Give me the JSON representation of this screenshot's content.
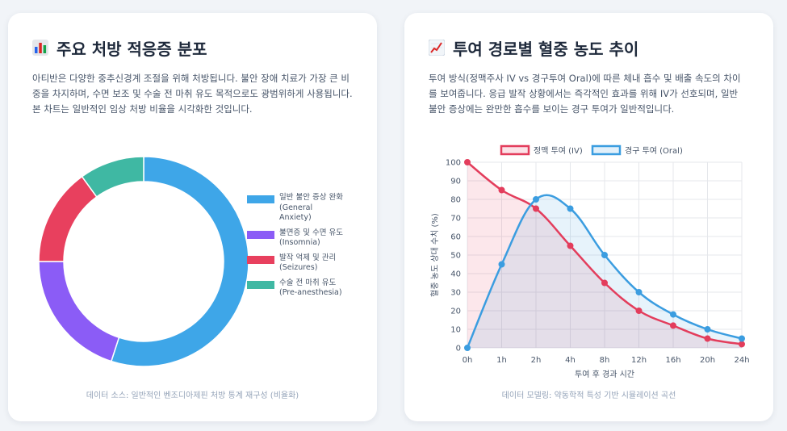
{
  "left_card": {
    "title": "주요 처방 적응증 분포",
    "title_icon": "bar-chart-icon",
    "description": "아티반은 다양한 중추신경계 조절을 위해 처방됩니다. 불안 장애 치료가 가장 큰 비중을 차지하며, 수면 보조 및 수술 전 마취 유도 목적으로도 광범위하게 사용됩니다. 본 차트는 일반적인 임상 처방 비율을 시각화한 것입니다.",
    "source": "데이터 소스: 일반적인 벤조디아제핀 처방 통계 재구성 (비율화)"
  },
  "right_card": {
    "title": "투여 경로별 혈중 농도 추이",
    "title_icon": "line-chart-icon",
    "description": "투여 방식(정맥주사 IV vs 경구투여 Oral)에 따른 체내 흡수 및 배출 속도의 차이를 보여줍니다. 응급 발작 상황에서는 즉각적인 효과를 위해 IV가 선호되며, 일반 불안 증상에는 완만한 흡수를 보이는 경구 투여가 일반적입니다.",
    "source": "데이터 모델링: 약동학적 특성 기반 시뮬레이션 곡선"
  },
  "chart_data": [
    {
      "type": "pie",
      "variant": "doughnut",
      "title": "주요 처방 적응증 분포",
      "categories": [
        "일반 불안 증상 완화 (General Anxiety)",
        "불면증 및 수면 유도 (Insomnia)",
        "발작 억제 및 관리 (Seizures)",
        "수술 전 마취 유도 (Pre-anesthesia)"
      ],
      "legend_lines": [
        [
          "일반 불안 증상 완화",
          "(General",
          "Anxiety)"
        ],
        [
          "불면증 및 수면 유도",
          "(Insomnia)"
        ],
        [
          "발작 억제 및 관리",
          "(Seizures)"
        ],
        [
          "수술 전 마취 유도",
          "(Pre-anesthesia)"
        ]
      ],
      "values": [
        55,
        20,
        15,
        10
      ],
      "colors": [
        "#3ea6e8",
        "#8b5cf6",
        "#e8405e",
        "#3fb8a3"
      ],
      "legend_position": "right"
    },
    {
      "type": "line",
      "title": "투여 경로별 혈중 농도 추이",
      "categories": [
        "0h",
        "1h",
        "2h",
        "4h",
        "8h",
        "12h",
        "16h",
        "20h",
        "24h"
      ],
      "series": [
        {
          "name": "정맥 투여 (IV)",
          "values": [
            100,
            85,
            75,
            55,
            35,
            20,
            12,
            5,
            2
          ],
          "color": "#e33d5c",
          "fill": "area"
        },
        {
          "name": "경구 투여 (Oral)",
          "values": [
            0,
            45,
            80,
            75,
            50,
            30,
            18,
            10,
            5
          ],
          "color": "#3b9de0",
          "fill": "area"
        }
      ],
      "xlabel": "투여 후 경과 시간",
      "ylabel": "혈중 농도 상대 수치 (%)",
      "ylim": [
        0,
        100
      ],
      "yticks": [
        0,
        10,
        20,
        30,
        40,
        50,
        60,
        70,
        80,
        90,
        100
      ],
      "grid": true,
      "legend_position": "top"
    }
  ]
}
